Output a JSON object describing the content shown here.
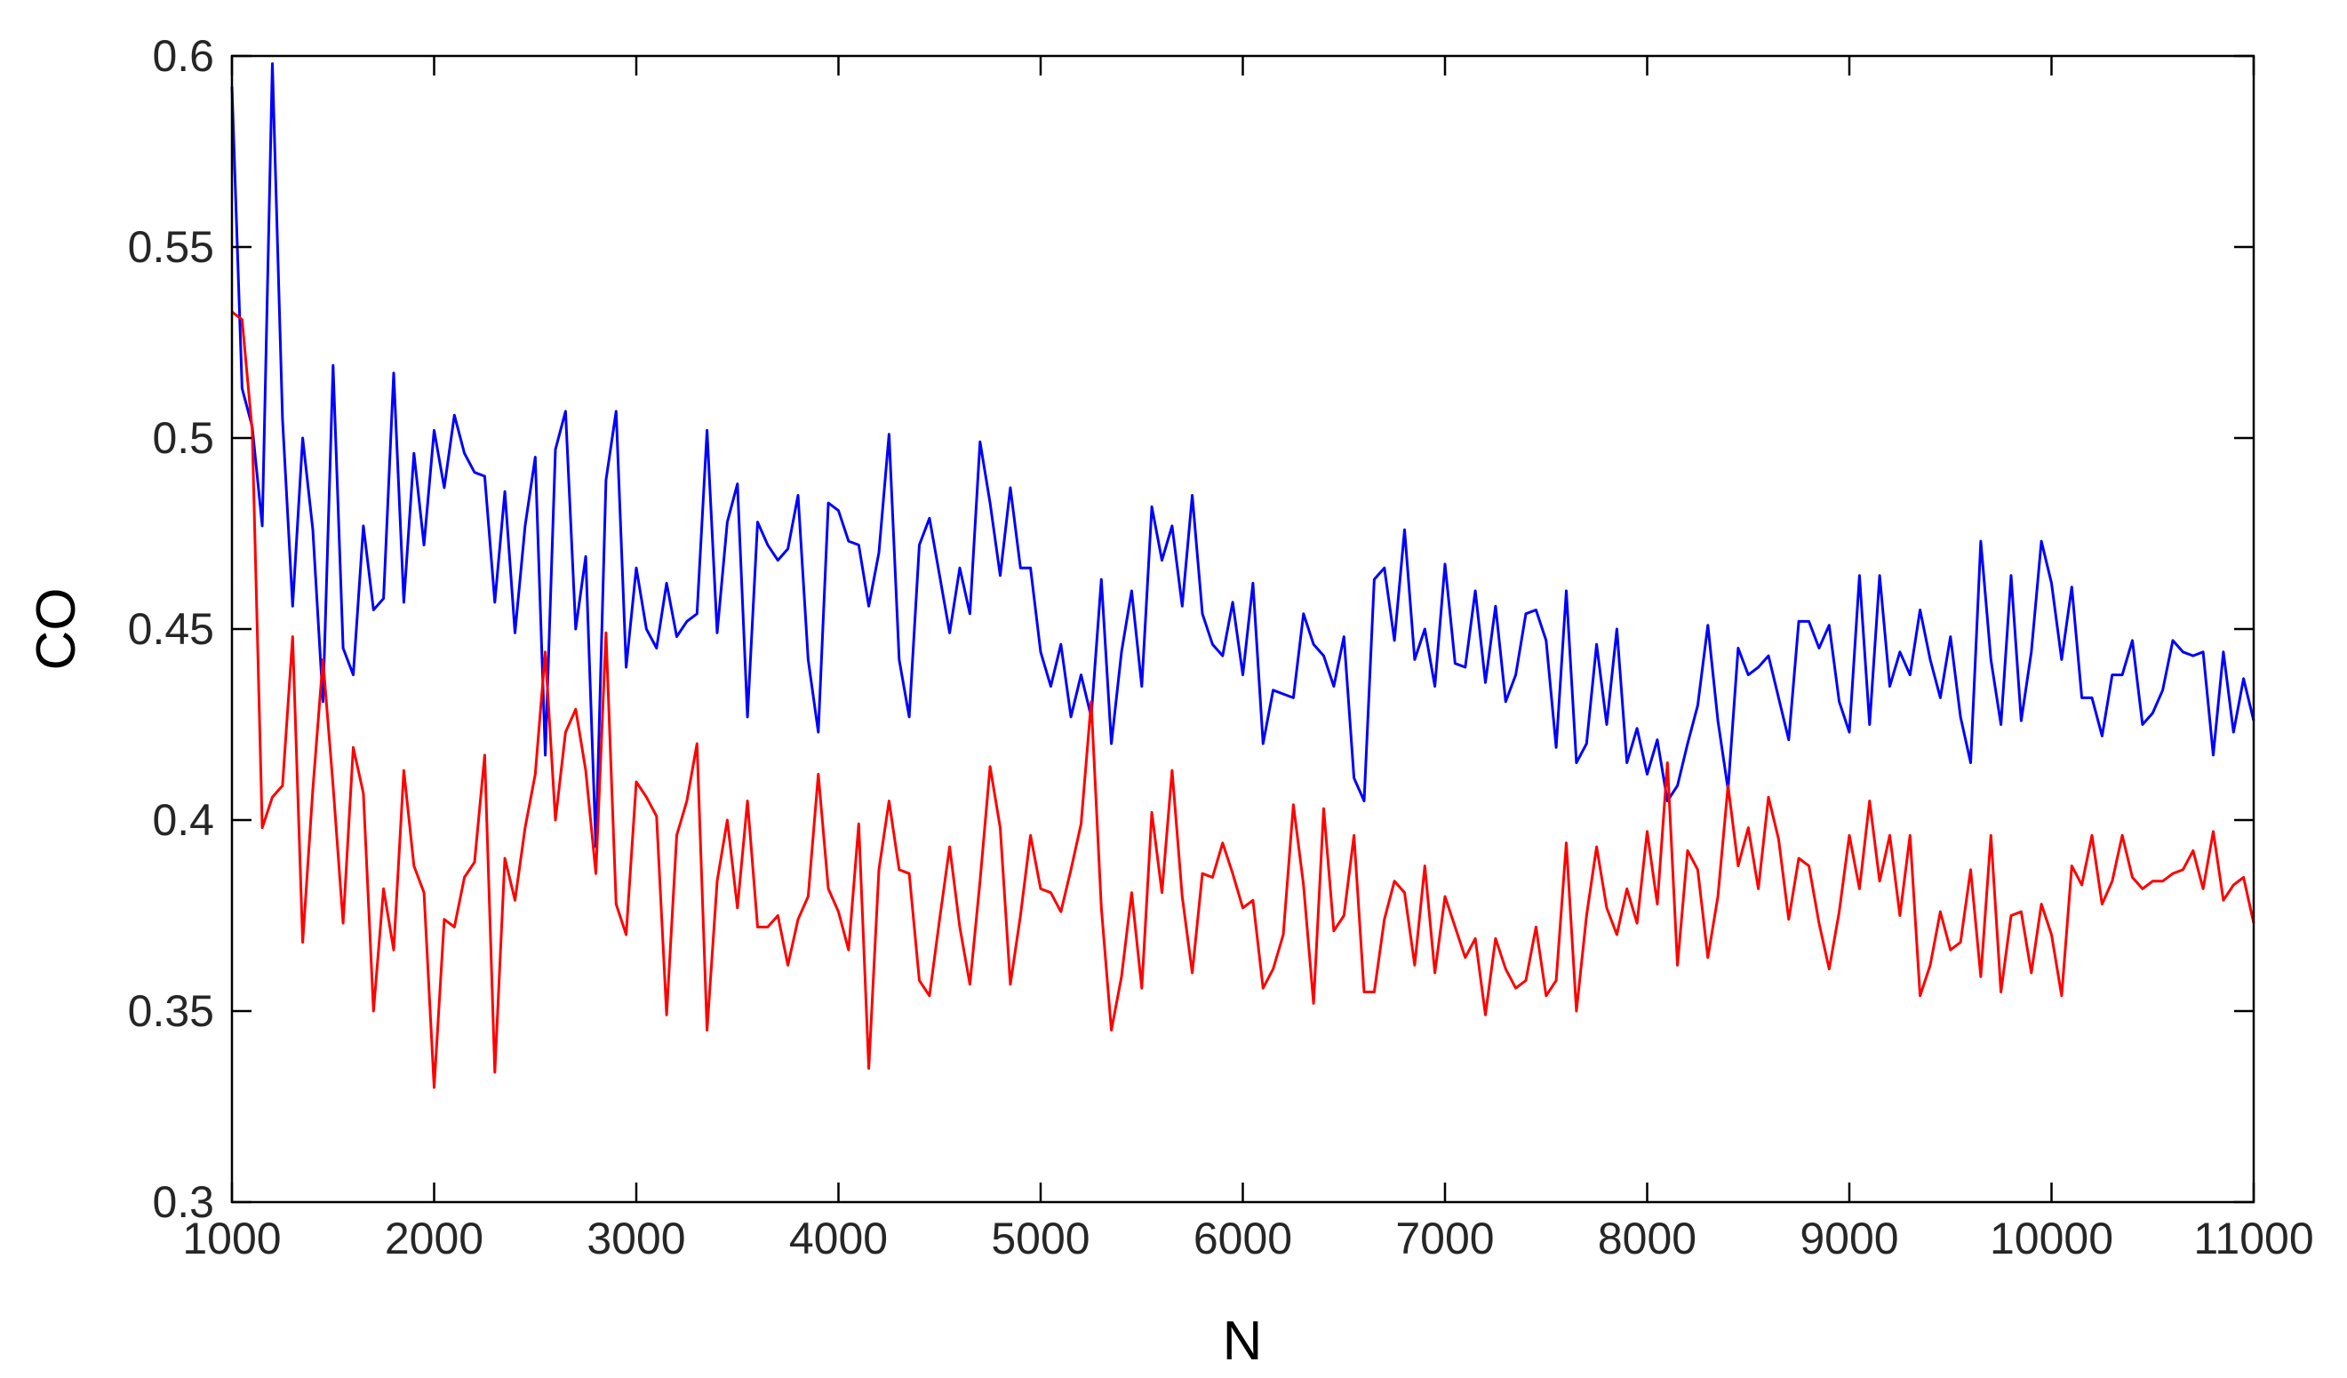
{
  "chart_data": {
    "type": "line",
    "title": "",
    "xlabel": "N",
    "ylabel": "CO",
    "xlim": [
      1000,
      11000
    ],
    "ylim": [
      0.3,
      0.6
    ],
    "xticks": [
      "1000",
      "2000",
      "3000",
      "4000",
      "5000",
      "6000",
      "7000",
      "8000",
      "9000",
      "10000",
      "11000"
    ],
    "yticks": [
      "0.3",
      "0.35",
      "0.4",
      "0.45",
      "0.5",
      "0.55",
      "0.6"
    ],
    "grid": false,
    "legend": "none",
    "series": [
      {
        "color": "#0000ff",
        "x": [
          1000,
          1050,
          1100,
          1150,
          1200,
          1250,
          1300,
          1350,
          1400,
          1450,
          1500,
          1550,
          1600,
          1650,
          1700,
          1750,
          1800,
          1850,
          1900,
          1950,
          2000,
          2050,
          2100,
          2150,
          2200,
          2250,
          2300,
          2350,
          2400,
          2450,
          2500,
          2550,
          2600,
          2650,
          2700,
          2750,
          2800,
          2850,
          2900,
          2950,
          3000,
          3050,
          3100,
          3150,
          3200,
          3250,
          3300,
          3350,
          3400,
          3450,
          3500,
          3550,
          3600,
          3650,
          3700,
          3750,
          3800,
          3850,
          3900,
          3950,
          4000,
          4050,
          4100,
          4150,
          4200,
          4250,
          4300,
          4350,
          4400,
          4450,
          4500,
          4550,
          4600,
          4650,
          4700,
          4750,
          4800,
          4850,
          4900,
          4950,
          5000,
          5050,
          5100,
          5150,
          5200,
          5250,
          5300,
          5350,
          5400,
          5450,
          5500,
          5550,
          5600,
          5650,
          5700,
          5750,
          5800,
          5850,
          5900,
          5950,
          6000,
          6050,
          6100,
          6150,
          6200,
          6250,
          6300,
          6350,
          6400,
          6450,
          6500,
          6550,
          6600,
          6650,
          6700,
          6750,
          6800,
          6850,
          6900,
          6950,
          7000,
          7050,
          7100,
          7150,
          7200,
          7250,
          7300,
          7350,
          7400,
          7450,
          7500,
          7550,
          7600,
          7650,
          7700,
          7750,
          7800,
          7850,
          7900,
          7950,
          8000,
          8050,
          8100,
          8150,
          8200,
          8250,
          8300,
          8350,
          8400,
          8450,
          8500,
          8550,
          8600,
          8650,
          8700,
          8750,
          8800,
          8850,
          8900,
          8950,
          9000,
          9050,
          9100,
          9150,
          9200,
          9250,
          9300,
          9350,
          9400,
          9450,
          9500,
          9550,
          9600,
          9650,
          9700,
          9750,
          9800,
          9850,
          9900,
          9950,
          10000,
          10050,
          10100,
          10150,
          10200,
          10250,
          10300,
          10350,
          10400,
          10450,
          10500,
          10550,
          10600,
          10650,
          10700,
          10750,
          10800,
          10850,
          10900,
          10950,
          11000
        ],
        "y": [
          0.592,
          0.513,
          0.503,
          0.477,
          0.598,
          0.505,
          0.456,
          0.5,
          0.476,
          0.431,
          0.519,
          0.445,
          0.438,
          0.477,
          0.455,
          0.458,
          0.517,
          0.457,
          0.496,
          0.472,
          0.502,
          0.487,
          0.506,
          0.496,
          0.491,
          0.49,
          0.457,
          0.486,
          0.449,
          0.477,
          0.495,
          0.417,
          0.497,
          0.507,
          0.45,
          0.469,
          0.393,
          0.489,
          0.507,
          0.44,
          0.466,
          0.45,
          0.445,
          0.462,
          0.448,
          0.452,
          0.454,
          0.502,
          0.449,
          0.478,
          0.488,
          0.427,
          0.478,
          0.472,
          0.468,
          0.471,
          0.485,
          0.442,
          0.423,
          0.483,
          0.481,
          0.473,
          0.472,
          0.456,
          0.47,
          0.501,
          0.442,
          0.427,
          0.472,
          0.479,
          0.464,
          0.449,
          0.466,
          0.454,
          0.499,
          0.483,
          0.464,
          0.487,
          0.466,
          0.466,
          0.444,
          0.435,
          0.446,
          0.427,
          0.438,
          0.427,
          0.463,
          0.42,
          0.444,
          0.46,
          0.435,
          0.482,
          0.468,
          0.477,
          0.456,
          0.485,
          0.454,
          0.446,
          0.443,
          0.457,
          0.438,
          0.462,
          0.42,
          0.434,
          0.433,
          0.432,
          0.454,
          0.446,
          0.443,
          0.435,
          0.448,
          0.411,
          0.405,
          0.463,
          0.466,
          0.447,
          0.476,
          0.442,
          0.45,
          0.435,
          0.467,
          0.441,
          0.44,
          0.46,
          0.436,
          0.456,
          0.431,
          0.438,
          0.454,
          0.455,
          0.447,
          0.419,
          0.46,
          0.415,
          0.42,
          0.446,
          0.425,
          0.45,
          0.415,
          0.424,
          0.412,
          0.421,
          0.405,
          0.409,
          0.42,
          0.43,
          0.451,
          0.426,
          0.408,
          0.445,
          0.438,
          0.44,
          0.443,
          0.432,
          0.421,
          0.452,
          0.452,
          0.445,
          0.451,
          0.431,
          0.423,
          0.464,
          0.425,
          0.464,
          0.435,
          0.444,
          0.438,
          0.455,
          0.442,
          0.432,
          0.448,
          0.427,
          0.415,
          0.473,
          0.442,
          0.425,
          0.464,
          0.426,
          0.444,
          0.473,
          0.462,
          0.442,
          0.461,
          0.432,
          0.432,
          0.422,
          0.438,
          0.438,
          0.447,
          0.425,
          0.428,
          0.434,
          0.447,
          0.444,
          0.443,
          0.444,
          0.417,
          0.444,
          0.423,
          0.437,
          0.426
        ]
      },
      {
        "color": "#ff0000",
        "x": [
          1000,
          1050,
          1100,
          1150,
          1200,
          1250,
          1300,
          1350,
          1400,
          1450,
          1500,
          1550,
          1600,
          1650,
          1700,
          1750,
          1800,
          1850,
          1900,
          1950,
          2000,
          2050,
          2100,
          2150,
          2200,
          2250,
          2300,
          2350,
          2400,
          2450,
          2500,
          2550,
          2600,
          2650,
          2700,
          2750,
          2800,
          2850,
          2900,
          2950,
          3000,
          3050,
          3100,
          3150,
          3200,
          3250,
          3300,
          3350,
          3400,
          3450,
          3500,
          3550,
          3600,
          3650,
          3700,
          3750,
          3800,
          3850,
          3900,
          3950,
          4000,
          4050,
          4100,
          4150,
          4200,
          4250,
          4300,
          4350,
          4400,
          4450,
          4500,
          4550,
          4600,
          4650,
          4700,
          4750,
          4800,
          4850,
          4900,
          4950,
          5000,
          5050,
          5100,
          5150,
          5200,
          5250,
          5300,
          5350,
          5400,
          5450,
          5500,
          5550,
          5600,
          5650,
          5700,
          5750,
          5800,
          5850,
          5900,
          5950,
          6000,
          6050,
          6100,
          6150,
          6200,
          6250,
          6300,
          6350,
          6400,
          6450,
          6500,
          6550,
          6600,
          6650,
          6700,
          6750,
          6800,
          6850,
          6900,
          6950,
          7000,
          7050,
          7100,
          7150,
          7200,
          7250,
          7300,
          7350,
          7400,
          7450,
          7500,
          7550,
          7600,
          7650,
          7700,
          7750,
          7800,
          7850,
          7900,
          7950,
          8000,
          8050,
          8100,
          8150,
          8200,
          8250,
          8300,
          8350,
          8400,
          8450,
          8500,
          8550,
          8600,
          8650,
          8700,
          8750,
          8800,
          8850,
          8900,
          8950,
          9000,
          9050,
          9100,
          9150,
          9200,
          9250,
          9300,
          9350,
          9400,
          9450,
          9500,
          9550,
          9600,
          9650,
          9700,
          9750,
          9800,
          9850,
          9900,
          9950,
          10000,
          10050,
          10100,
          10150,
          10200,
          10250,
          10300,
          10350,
          10400,
          10450,
          10500,
          10550,
          10600,
          10650,
          10700,
          10750,
          10800,
          10850,
          10900,
          10950,
          11000
        ],
        "y": [
          0.533,
          0.531,
          0.502,
          0.398,
          0.406,
          0.409,
          0.448,
          0.368,
          0.408,
          0.442,
          0.409,
          0.373,
          0.419,
          0.407,
          0.35,
          0.382,
          0.366,
          0.413,
          0.388,
          0.381,
          0.33,
          0.374,
          0.372,
          0.385,
          0.389,
          0.417,
          0.334,
          0.39,
          0.379,
          0.398,
          0.412,
          0.444,
          0.4,
          0.423,
          0.429,
          0.413,
          0.386,
          0.449,
          0.378,
          0.37,
          0.41,
          0.406,
          0.401,
          0.349,
          0.396,
          0.405,
          0.42,
          0.345,
          0.384,
          0.4,
          0.377,
          0.405,
          0.372,
          0.372,
          0.375,
          0.362,
          0.374,
          0.38,
          0.412,
          0.382,
          0.376,
          0.366,
          0.399,
          0.335,
          0.387,
          0.405,
          0.387,
          0.386,
          0.358,
          0.354,
          0.374,
          0.393,
          0.372,
          0.357,
          0.384,
          0.414,
          0.398,
          0.357,
          0.375,
          0.396,
          0.382,
          0.381,
          0.376,
          0.387,
          0.399,
          0.431,
          0.377,
          0.345,
          0.359,
          0.381,
          0.356,
          0.402,
          0.381,
          0.413,
          0.38,
          0.36,
          0.386,
          0.385,
          0.394,
          0.386,
          0.377,
          0.379,
          0.356,
          0.361,
          0.37,
          0.404,
          0.383,
          0.352,
          0.403,
          0.371,
          0.375,
          0.396,
          0.355,
          0.355,
          0.374,
          0.384,
          0.381,
          0.362,
          0.388,
          0.36,
          0.38,
          0.372,
          0.364,
          0.369,
          0.349,
          0.369,
          0.361,
          0.356,
          0.358,
          0.372,
          0.354,
          0.358,
          0.394,
          0.35,
          0.375,
          0.393,
          0.377,
          0.37,
          0.382,
          0.373,
          0.397,
          0.378,
          0.415,
          0.362,
          0.392,
          0.387,
          0.364,
          0.38,
          0.409,
          0.388,
          0.398,
          0.382,
          0.406,
          0.395,
          0.374,
          0.39,
          0.388,
          0.373,
          0.361,
          0.376,
          0.396,
          0.382,
          0.405,
          0.384,
          0.396,
          0.375,
          0.396,
          0.354,
          0.362,
          0.376,
          0.366,
          0.368,
          0.387,
          0.359,
          0.396,
          0.355,
          0.375,
          0.376,
          0.36,
          0.378,
          0.37,
          0.354,
          0.388,
          0.383,
          0.396,
          0.378,
          0.384,
          0.396,
          0.385,
          0.382,
          0.384,
          0.384,
          0.386,
          0.387,
          0.392,
          0.382,
          0.397,
          0.379,
          0.383,
          0.385,
          0.373
        ]
      }
    ]
  }
}
